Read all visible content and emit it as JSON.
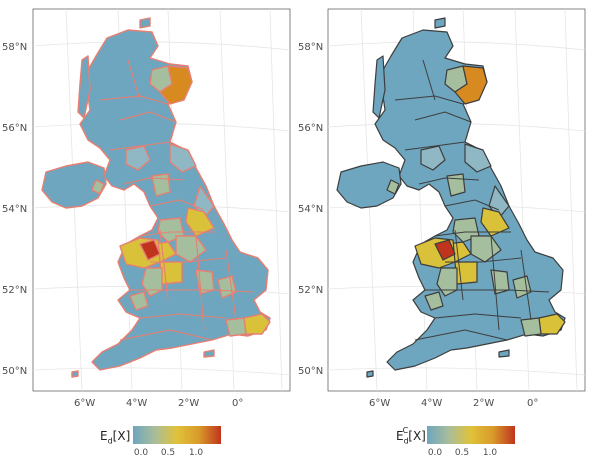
{
  "panels": [
    {
      "legend_title_main": "E",
      "legend_title_sub": "d",
      "legend_title_sup": "",
      "legend_title_suffix": "[X]",
      "borders": "salmon"
    },
    {
      "legend_title_main": "E",
      "legend_title_sub": "d",
      "legend_title_sup": "C",
      "legend_title_suffix": "[X]",
      "borders": "dark"
    }
  ],
  "axes": {
    "lat_ticks": [
      "58°N",
      "56°N",
      "54°N",
      "52°N",
      "50°N"
    ],
    "lon_ticks": [
      "6°W",
      "4°W",
      "2°W",
      "0°"
    ]
  },
  "legend": {
    "ticks": [
      "0.0",
      "0.5",
      "1.0"
    ],
    "scale_colors": [
      "#6ea6bf",
      "#a9bd9a",
      "#e0c23a",
      "#d89a2a",
      "#c0341d"
    ]
  },
  "map_colors": {
    "base": "#6ea6bf",
    "light": "#8fb7c4",
    "sage": "#a5bf9e",
    "yellow": "#d9c13a",
    "orange": "#d68a1f",
    "red": "#c0341d",
    "salmon_border": "#e77f72",
    "dark_border": "#3d3d3d",
    "grid": "#e6e6e6"
  }
}
